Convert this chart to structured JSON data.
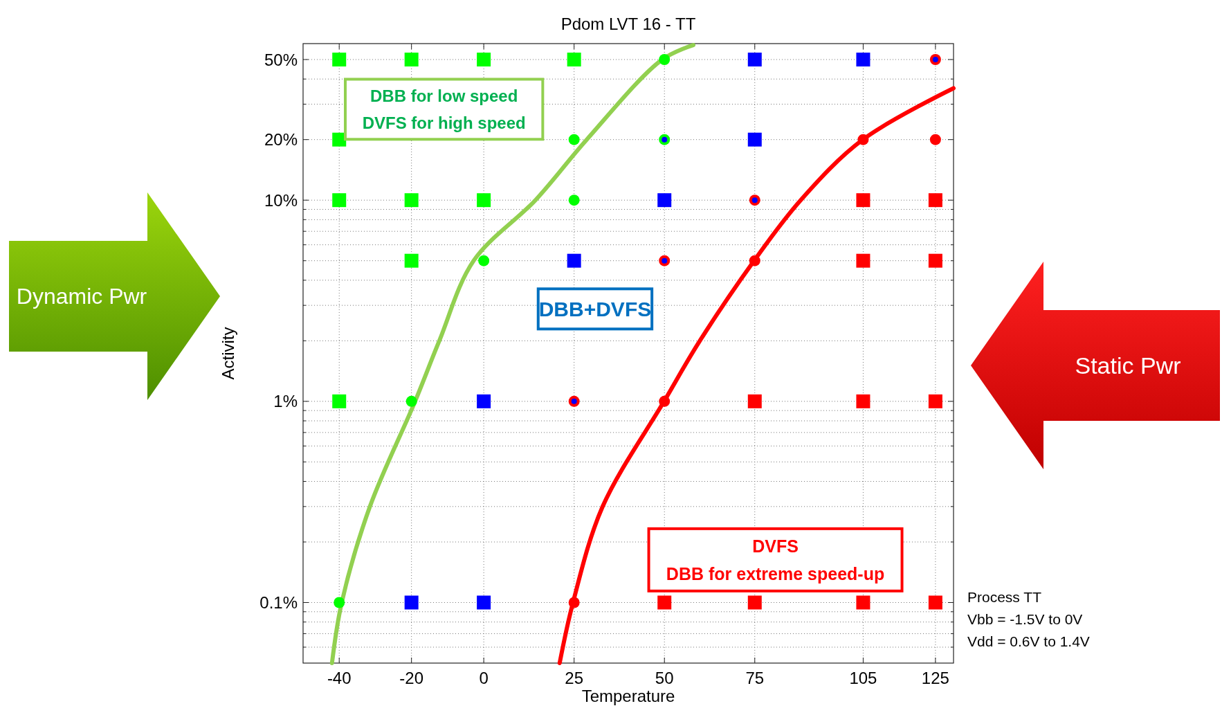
{
  "chart_data": {
    "type": "scatter",
    "title": "Pdom LVT 16 - TT",
    "xlabel": "Temperature",
    "ylabel": "Activity",
    "log": "y",
    "grid": true,
    "xlim": [
      -50,
      130
    ],
    "xticks": [
      -40,
      -20,
      0,
      25,
      50,
      75,
      105,
      125
    ],
    "ylim": [
      0.05,
      60
    ],
    "yticks": [
      {
        "value": 0.06,
        "label": null
      },
      {
        "value": 0.07,
        "label": null
      },
      {
        "value": 0.08,
        "label": null
      },
      {
        "value": 0.09,
        "label": null
      },
      {
        "value": 0.1,
        "label": "0.1%"
      },
      {
        "value": 0.2,
        "label": null
      },
      {
        "value": 0.3,
        "label": null
      },
      {
        "value": 0.4,
        "label": null
      },
      {
        "value": 0.5,
        "label": null
      },
      {
        "value": 0.6,
        "label": null
      },
      {
        "value": 0.7,
        "label": null
      },
      {
        "value": 0.8,
        "label": null
      },
      {
        "value": 0.9,
        "label": null
      },
      {
        "value": 1,
        "label": "1%"
      },
      {
        "value": 2,
        "label": null
      },
      {
        "value": 3,
        "label": null
      },
      {
        "value": 4,
        "label": null
      },
      {
        "value": 5,
        "label": null
      },
      {
        "value": 6,
        "label": null
      },
      {
        "value": 7,
        "label": null
      },
      {
        "value": 8,
        "label": null
      },
      {
        "value": 9,
        "label": null
      },
      {
        "value": 10,
        "label": "10%"
      },
      {
        "value": 20,
        "label": "20%"
      },
      {
        "value": 30,
        "label": null
      },
      {
        "value": 40,
        "label": null
      },
      {
        "value": 50,
        "label": "50%"
      }
    ],
    "series": [
      {
        "type": "line",
        "color": "#92d050",
        "line_style": "solid",
        "x": [
          -42,
          -39.3,
          -31.5,
          -19,
          -12.3,
          -2.8,
          14.3,
          28.5,
          49.4,
          58
        ],
        "values": [
          0.05,
          0.1,
          0.3,
          1,
          2,
          5,
          10,
          20,
          50,
          59
        ]
      },
      {
        "type": "line",
        "color": "#ff0000",
        "line_style": "solid",
        "x": [
          21,
          24.7,
          32.9,
          49.9,
          59.8,
          74.8,
          87.7,
          104.9,
          130
        ],
        "values": [
          0.05,
          0.1,
          0.3,
          1,
          2,
          5,
          10,
          20,
          36
        ]
      },
      {
        "color": "#00ff00",
        "marker": "square",
        "x": [
          -40,
          -20,
          0,
          25,
          -40,
          -40,
          -20,
          0,
          -20,
          -40
        ],
        "values": [
          50,
          50,
          50,
          50,
          20,
          10,
          10,
          10,
          5,
          1
        ]
      },
      {
        "color": "#00ff00",
        "marker": "circle",
        "x": [
          50,
          25,
          50,
          25,
          0,
          -20,
          -40
        ],
        "values": [
          50,
          20,
          20,
          10,
          5,
          1,
          0.1
        ]
      },
      {
        "color": "#0000ff",
        "marker": "square",
        "x": [
          75,
          105,
          75,
          50,
          25,
          0,
          -20,
          0
        ],
        "values": [
          50,
          50,
          20,
          10,
          5,
          1,
          0.1,
          0.1
        ]
      },
      {
        "color": "#ff0000",
        "marker": "square",
        "x": [
          105,
          125,
          105,
          125,
          75,
          105,
          125,
          50,
          75,
          105,
          125
        ],
        "values": [
          10,
          10,
          5,
          5,
          1,
          1,
          1,
          0.1,
          0.1,
          0.1,
          0.1
        ]
      },
      {
        "color": "#ff0000",
        "marker": "circle",
        "x": [
          125,
          105,
          125,
          75,
          75,
          50,
          50,
          25,
          25
        ],
        "values": [
          50,
          20,
          20,
          10,
          5,
          5,
          1,
          1,
          0.1
        ]
      },
      {
        "color": "#0000ff",
        "marker": "circle",
        "x": [
          125,
          75,
          50,
          25,
          50
        ],
        "values": [
          50,
          10,
          5,
          1,
          20
        ]
      }
    ],
    "annotations": [
      "DBB for low speed\nDVFS for high speed",
      "DBB+DVFS",
      "DVFS\nDBB for extreme speed-up",
      "Dynamic Pwr",
      "Static Pwr",
      "Process TT",
      "Vbb = -1.5V to 0V",
      "Vdd = 0.6V to 1.4V"
    ]
  }
}
